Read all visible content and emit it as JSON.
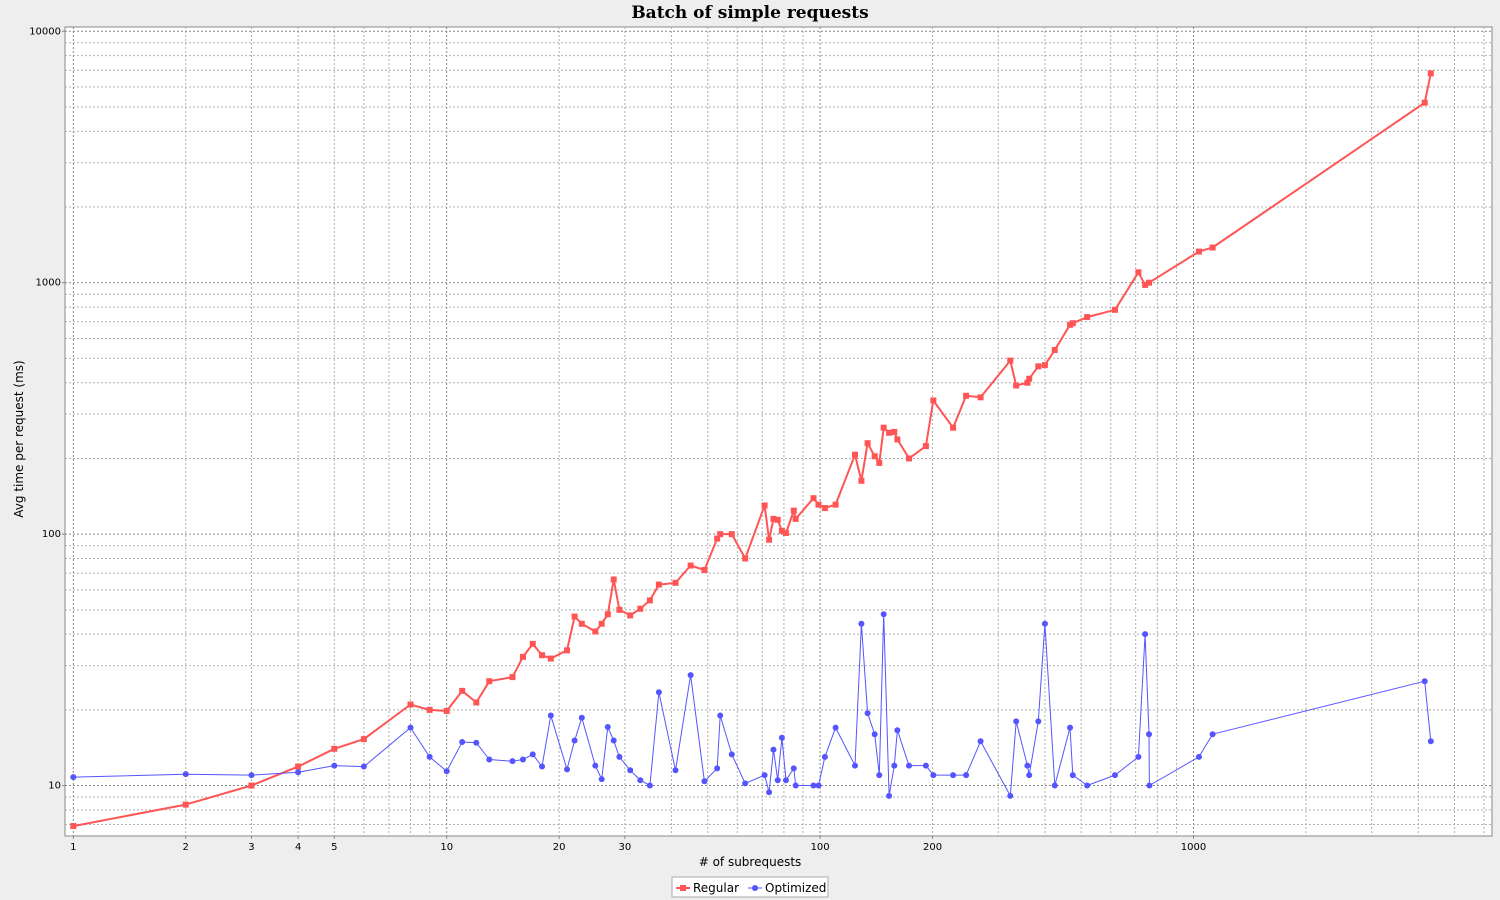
{
  "chart_data": {
    "type": "line",
    "title": "Batch of simple requests",
    "xlabel": "# of subrequests",
    "ylabel": "Avg time per request (ms)",
    "x_scale": "log",
    "y_scale": "log",
    "xlim": [
      0.95,
      6300
    ],
    "ylim": [
      6.3,
      10400
    ],
    "x_tick_labels": [
      "1",
      "2",
      "3",
      "4",
      "5",
      "10",
      "20",
      "30",
      "100",
      "200",
      "1000"
    ],
    "y_tick_labels": [
      "10",
      "100",
      "1000",
      "10000"
    ],
    "grid": true,
    "legend_position": "bottom-center",
    "series": [
      {
        "name": "Regular",
        "color": "#ff5555",
        "marker": "square",
        "points": [
          [
            1,
            6.9
          ],
          [
            2,
            8.4
          ],
          [
            3,
            10
          ],
          [
            4,
            11.9
          ],
          [
            5,
            14
          ],
          [
            6,
            15.3
          ],
          [
            8,
            21
          ],
          [
            9,
            20
          ],
          [
            10,
            19.8
          ],
          [
            11,
            23.8
          ],
          [
            12,
            21.4
          ],
          [
            13,
            26
          ],
          [
            15,
            27
          ],
          [
            16,
            32.5
          ],
          [
            17,
            36.6
          ],
          [
            18,
            33
          ],
          [
            19,
            32
          ],
          [
            21,
            34.5
          ],
          [
            22,
            47
          ],
          [
            23,
            44
          ],
          [
            25,
            41
          ],
          [
            26,
            44
          ],
          [
            27,
            48
          ],
          [
            28,
            66
          ],
          [
            29,
            50
          ],
          [
            31,
            47.5
          ],
          [
            33,
            50.5
          ],
          [
            35,
            54.5
          ],
          [
            37,
            63
          ],
          [
            41,
            64
          ],
          [
            45,
            75
          ],
          [
            49,
            72
          ],
          [
            53,
            96
          ],
          [
            54,
            100
          ],
          [
            58,
            100
          ],
          [
            63,
            80
          ],
          [
            71,
            130
          ],
          [
            73,
            95
          ],
          [
            75,
            115
          ],
          [
            77,
            114
          ],
          [
            79,
            103
          ],
          [
            81,
            101
          ],
          [
            85,
            124
          ],
          [
            86,
            115
          ],
          [
            96,
            139
          ],
          [
            99,
            131
          ],
          [
            103,
            127
          ],
          [
            110,
            131
          ],
          [
            124,
            207
          ],
          [
            129,
            163
          ],
          [
            134,
            230
          ],
          [
            140,
            204
          ],
          [
            144,
            192
          ],
          [
            148,
            265
          ],
          [
            153,
            253
          ],
          [
            158,
            255
          ],
          [
            161,
            238
          ],
          [
            173,
            200
          ],
          [
            192,
            224
          ],
          [
            201,
            340
          ],
          [
            227,
            265
          ],
          [
            246,
            355
          ],
          [
            269,
            350
          ],
          [
            323,
            490
          ],
          [
            335,
            390
          ],
          [
            359,
            400
          ],
          [
            363,
            415
          ],
          [
            384,
            465
          ],
          [
            400,
            470
          ],
          [
            425,
            540
          ],
          [
            467,
            680
          ],
          [
            475,
            690
          ],
          [
            519,
            730
          ],
          [
            616,
            780
          ],
          [
            712,
            1100
          ],
          [
            742,
            980
          ],
          [
            760,
            1000
          ],
          [
            1034,
            1330
          ],
          [
            1125,
            1380
          ],
          [
            4160,
            5200
          ],
          [
            4320,
            6800
          ]
        ]
      },
      {
        "name": "Optimized",
        "color": "#5555ff",
        "marker": "circle",
        "points": [
          [
            1,
            10.8
          ],
          [
            2,
            11.1
          ],
          [
            3,
            11
          ],
          [
            4,
            11.3
          ],
          [
            5,
            12
          ],
          [
            6,
            11.9
          ],
          [
            8,
            17
          ],
          [
            9,
            13
          ],
          [
            10,
            11.4
          ],
          [
            11,
            14.9
          ],
          [
            12,
            14.8
          ],
          [
            13,
            12.7
          ],
          [
            15,
            12.5
          ],
          [
            16,
            12.7
          ],
          [
            17,
            13.3
          ],
          [
            18,
            11.9
          ],
          [
            19,
            19
          ],
          [
            21,
            11.6
          ],
          [
            22,
            15.1
          ],
          [
            23,
            18.6
          ],
          [
            25,
            12
          ],
          [
            26,
            10.6
          ],
          [
            27,
            17.1
          ],
          [
            28,
            15.1
          ],
          [
            29,
            13
          ],
          [
            31,
            11.5
          ],
          [
            33,
            10.5
          ],
          [
            35,
            10
          ],
          [
            37,
            23.5
          ],
          [
            41,
            11.5
          ],
          [
            45,
            27.5
          ],
          [
            49,
            10.4
          ],
          [
            53,
            11.7
          ],
          [
            54,
            19
          ],
          [
            58,
            13.3
          ],
          [
            63,
            10.2
          ],
          [
            71,
            11
          ],
          [
            73,
            9.4
          ],
          [
            75,
            13.9
          ],
          [
            77,
            10.5
          ],
          [
            79,
            15.5
          ],
          [
            81,
            10.5
          ],
          [
            85,
            11.7
          ],
          [
            86,
            10
          ],
          [
            96,
            10
          ],
          [
            99,
            10
          ],
          [
            103,
            13
          ],
          [
            110,
            17
          ],
          [
            124,
            12
          ],
          [
            129,
            44
          ],
          [
            134,
            19.4
          ],
          [
            140,
            16
          ],
          [
            144,
            11
          ],
          [
            148,
            48
          ],
          [
            153,
            9.1
          ],
          [
            158,
            12
          ],
          [
            161,
            16.6
          ],
          [
            173,
            12
          ],
          [
            192,
            12
          ],
          [
            201,
            11
          ],
          [
            227,
            11
          ],
          [
            246,
            11
          ],
          [
            269,
            15
          ],
          [
            323,
            9.1
          ],
          [
            335,
            18
          ],
          [
            359,
            12
          ],
          [
            363,
            11
          ],
          [
            384,
            18
          ],
          [
            400,
            44
          ],
          [
            425,
            10
          ],
          [
            467,
            17
          ],
          [
            475,
            11
          ],
          [
            519,
            10
          ],
          [
            616,
            11
          ],
          [
            712,
            13
          ],
          [
            742,
            40
          ],
          [
            760,
            16
          ],
          [
            762,
            10
          ],
          [
            1034,
            13
          ],
          [
            1125,
            16
          ],
          [
            4160,
            26
          ],
          [
            4320,
            15
          ]
        ]
      }
    ]
  }
}
